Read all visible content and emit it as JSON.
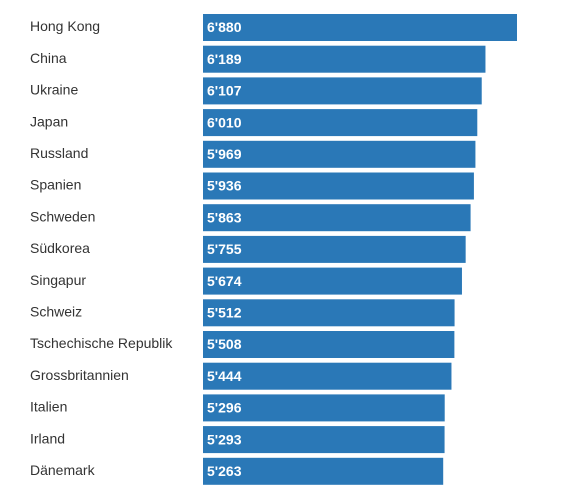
{
  "chart_data": {
    "type": "bar",
    "orientation": "horizontal",
    "color": "#2a78b7",
    "categories": [
      "Hong Kong",
      "China",
      "Ukraine",
      "Japan",
      "Russland",
      "Spanien",
      "Schweden",
      "Südkorea",
      "Singapur",
      "Schweiz",
      "Tschechische Republik",
      "Grossbritannien",
      "Italien",
      "Irland",
      "Dänemark"
    ],
    "values": [
      6880,
      6189,
      6107,
      6010,
      5969,
      5936,
      5863,
      5755,
      5674,
      5512,
      5508,
      5444,
      5296,
      5293,
      5263
    ],
    "value_labels": [
      "6'880",
      "6'189",
      "6'107",
      "6'010",
      "5'969",
      "5'936",
      "5'863",
      "5'755",
      "5'674",
      "5'512",
      "5'508",
      "5'444",
      "5'296",
      "5'293",
      "5'263"
    ]
  }
}
